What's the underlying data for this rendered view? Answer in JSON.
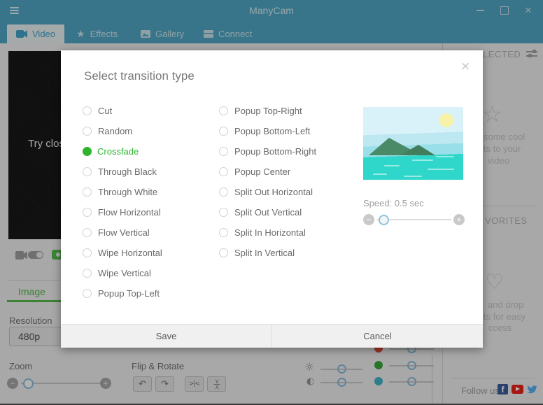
{
  "titlebar": {
    "title": "ManyCam"
  },
  "tabs": [
    {
      "label": "Video",
      "active": true,
      "icon": "video-camera-icon"
    },
    {
      "label": "Effects",
      "active": false,
      "icon": "star-icon"
    },
    {
      "label": "Gallery",
      "active": false,
      "icon": "gallery-icon"
    },
    {
      "label": "Connect",
      "active": false,
      "icon": "connect-icon"
    }
  ],
  "video_area": {
    "overlay_text_fragment": "Try clos"
  },
  "image_panel": {
    "tab_label": "Image",
    "resolution_label": "Resolution",
    "resolution_value": "480p",
    "zoom_label": "Zoom",
    "flip_rotate_label": "Flip & Rotate"
  },
  "sidebar": {
    "selected_header_fragment": "LECTED",
    "selected_hint_fragments": [
      "some cool",
      "ts to your",
      "video"
    ],
    "favorites_header_fragment": "VORITES",
    "favorites_hint_fragments": [
      "and drop",
      "ts for easy",
      "ccess"
    ],
    "follow_us_label": "Follow us",
    "social_icons": [
      "facebook-icon",
      "youtube-icon",
      "twitter-icon"
    ]
  },
  "modal": {
    "title": "Select transition type",
    "columns": [
      [
        {
          "label": "Cut",
          "selected": false
        },
        {
          "label": "Random",
          "selected": false
        },
        {
          "label": "Crossfade",
          "selected": true
        },
        {
          "label": "Through Black",
          "selected": false
        },
        {
          "label": "Through White",
          "selected": false
        },
        {
          "label": "Flow Horizontal",
          "selected": false
        },
        {
          "label": "Flow Vertical",
          "selected": false
        },
        {
          "label": "Wipe Horizontal",
          "selected": false
        },
        {
          "label": "Wipe Vertical",
          "selected": false
        },
        {
          "label": "Popup Top-Left",
          "selected": false
        }
      ],
      [
        {
          "label": "Popup Top-Right",
          "selected": false
        },
        {
          "label": "Popup Bottom-Left",
          "selected": false
        },
        {
          "label": "Popup Bottom-Right",
          "selected": false
        },
        {
          "label": "Popup Center",
          "selected": false
        },
        {
          "label": "Split Out Horizontal",
          "selected": false
        },
        {
          "label": "Split Out Vertical",
          "selected": false
        },
        {
          "label": "Split In Horizontal",
          "selected": false
        },
        {
          "label": "Split In Vertical",
          "selected": false
        }
      ]
    ],
    "speed_label": "Speed: 0.5 sec",
    "save_label": "Save",
    "cancel_label": "Cancel"
  },
  "colors": {
    "titlebar_teal": "#4FA3C0",
    "selected_option_green": "#2FB42F",
    "image_tab_green": "#54B54A",
    "rgb_slider_dots": {
      "red": "#E04B3A",
      "green": "#37A33A",
      "blue": "#3FAFC4"
    },
    "facebook_blue": "#3B5998",
    "youtube_red": "#E62117",
    "twitter_blue": "#55ACEE"
  }
}
